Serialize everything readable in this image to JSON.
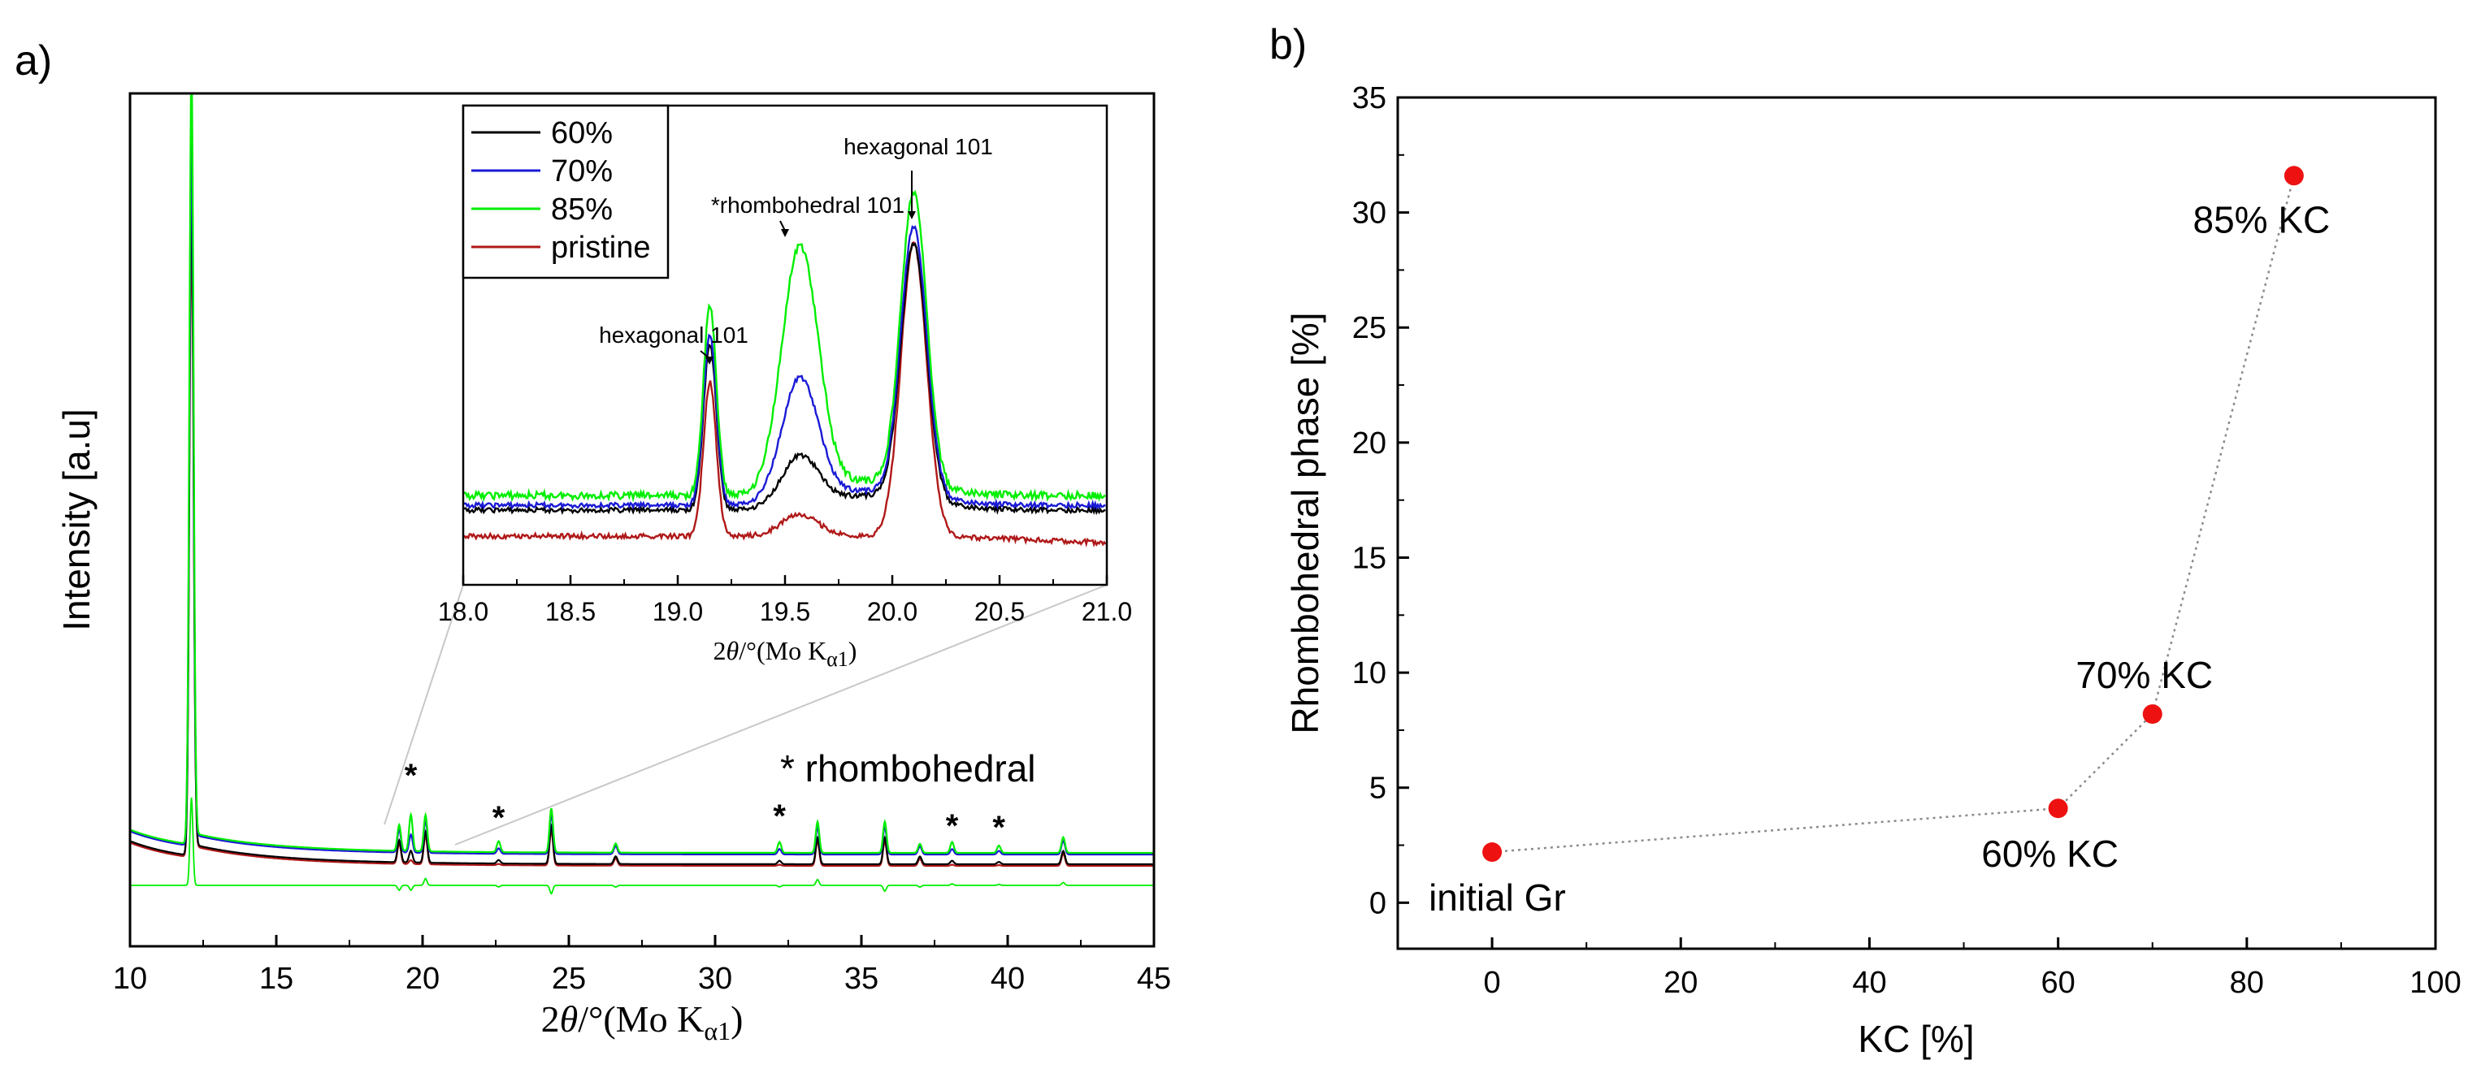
{
  "panel_labels": [
    "a)",
    "b)"
  ],
  "colors": {
    "60%": "#000000",
    "70%": "#1a1ad6",
    "85%": "#00ee00",
    "pristine": "#b01818",
    "point": "#ee1111",
    "connector": "#8c8c8c",
    "zoom_lines": "#c8c8c8"
  },
  "chart_data": [
    {
      "id": "a-main",
      "type": "line",
      "title": "",
      "xlabel_pre": "2",
      "xlabel_theta": "θ",
      "xlabel_mid": "/°(Mo K",
      "xlabel_sub": "α1",
      "xlabel_post": ")",
      "ylabel": "Intensity [a.u]",
      "xlim": [
        10,
        45
      ],
      "xticks": [
        10,
        15,
        20,
        25,
        30,
        35,
        40,
        45
      ],
      "y_ticks_labeled": false,
      "legend_note": "* rhombohedral",
      "star_positions": [
        19.6,
        22.6,
        32.2,
        38.1,
        39.7
      ],
      "peaks": [
        12.1,
        19.2,
        19.6,
        20.1,
        22.6,
        24.4,
        26.6,
        32.2,
        33.5,
        35.8,
        37.0,
        38.1,
        39.7,
        41.9
      ],
      "series": [
        {
          "name": "60%",
          "color_key": "60%"
        },
        {
          "name": "70%",
          "color_key": "70%"
        },
        {
          "name": "85%",
          "color_key": "85%"
        },
        {
          "name": "pristine",
          "color_key": "pristine"
        }
      ]
    },
    {
      "id": "a-inset",
      "type": "line",
      "title": "",
      "xlabel_pre": "2",
      "xlabel_theta": "θ",
      "xlabel_mid": "/°(Mo K",
      "xlabel_sub": "α1",
      "xlabel_post": ")",
      "ylabel": "",
      "xlim": [
        18.0,
        21.0
      ],
      "xticks": [
        "18.0",
        "18.5",
        "19.0",
        "19.5",
        "20.0",
        "20.5",
        "21.0"
      ],
      "legend": [
        "60%",
        "70%",
        "85%",
        "pristine"
      ],
      "legend_placement": "top-left",
      "annotations": [
        {
          "text": "hexagonal 101",
          "x": 19.15
        },
        {
          "text": "*rhombohedral 101",
          "x": 19.57
        },
        {
          "text": "hexagonal 101",
          "x": 20.1
        }
      ],
      "peaks": [
        {
          "x": 19.15,
          "heights": {
            "60%": 0.68,
            "70%": 0.7,
            "85%": 0.78,
            "pristine": 0.63
          }
        },
        {
          "x": 19.57,
          "heights": {
            "60%": 0.2,
            "70%": 0.5,
            "85%": 1.0,
            "pristine": 0.09
          }
        },
        {
          "x": 20.1,
          "heights": {
            "60%": 1.05,
            "70%": 1.1,
            "85%": 1.2,
            "pristine": 1.2
          }
        }
      ]
    },
    {
      "id": "b",
      "type": "scatter",
      "title": "",
      "xlabel": "KC [%]",
      "ylabel": "Rhombohedral phase [%]",
      "xlim": [
        -10,
        100
      ],
      "ylim": [
        -2,
        35
      ],
      "xticks": [
        0,
        20,
        40,
        60,
        80,
        100
      ],
      "yticks": [
        0,
        5,
        10,
        15,
        20,
        25,
        30,
        35
      ],
      "grid": false,
      "connected": true,
      "points": [
        {
          "x": 0,
          "y": 2.2,
          "label": "initial Gr"
        },
        {
          "x": 60,
          "y": 4.1,
          "label": "60% KC"
        },
        {
          "x": 70,
          "y": 8.2,
          "label": "70% KC"
        },
        {
          "x": 85,
          "y": 31.6,
          "label": "85% KC"
        }
      ]
    }
  ]
}
